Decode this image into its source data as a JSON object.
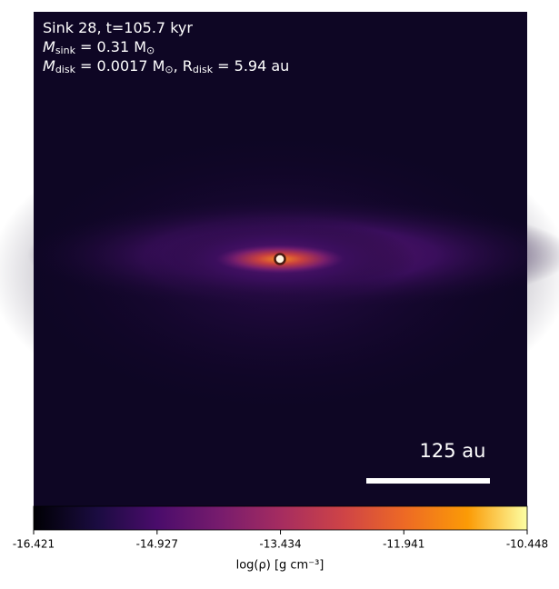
{
  "chart_data": {
    "type": "image",
    "annotation_lines": [
      [
        {
          "text": "Sink 28, t=105.7 kyr"
        }
      ],
      [
        {
          "text": "M"
        },
        {
          "sub": "sink"
        },
        {
          "text": " = 0.31 M"
        },
        {
          "sub": "⊙"
        }
      ],
      [
        {
          "text": "M"
        },
        {
          "sub": "disk"
        },
        {
          "text": " = 0.0017 M"
        },
        {
          "sub": "⊙"
        },
        {
          "text": ", R"
        },
        {
          "sub": "disk"
        },
        {
          "text": " = 5.94 au"
        }
      ]
    ],
    "scale_bar_label": "125 au",
    "colorbar": {
      "colormap": "inferno",
      "lim": [
        -16.421,
        -10.448
      ],
      "ticks": [
        -16.421,
        -14.927,
        -13.434,
        -11.941,
        -10.448
      ],
      "label": "log(ρ) [g cm⁻³]"
    }
  }
}
